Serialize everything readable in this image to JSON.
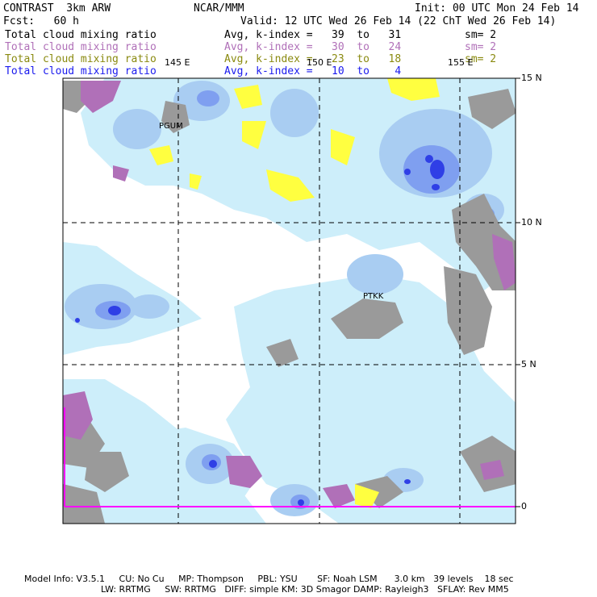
{
  "header": {
    "model": "CONTRAST  3km ARW",
    "center": "NCAR/MMM",
    "init": "Init: 00 UTC Mon 24 Feb 14",
    "fcst": "Fcst:   60 h",
    "valid": "Valid: 12 UTC Wed 26 Feb 14 (22 ChT Wed 26 Feb 14)"
  },
  "fields": [
    {
      "name": "Total cloud mixing ratio",
      "range": "Avg, k-index =   39  to   31",
      "sm": "sm= 2",
      "color": "#000000"
    },
    {
      "name": "Total cloud mixing ratio",
      "range": "Avg, k-index =   30  to   24",
      "sm": "sm= 2",
      "color": "#b070b8"
    },
    {
      "name": "Total cloud mixing ratio",
      "range": "Avg, k-index =   23  to   18",
      "sm": "sm= 2",
      "color": "#8a8a10"
    },
    {
      "name": "Total cloud mixing ratio",
      "range": "Avg, k-index =   10  to    4",
      "sm": "",
      "color": "#1a1aee"
    }
  ],
  "map": {
    "lon_labels": [
      "145 E",
      "150 E",
      "155 E"
    ],
    "lat_labels": [
      "15 N",
      "10 N",
      "5 N",
      "0"
    ],
    "stations": [
      "PGUM",
      "PTKK"
    ],
    "colors": {
      "light_cloud": "#cdeefa",
      "medium_cloud": "#a9cdf2",
      "dense_cloud": "#7f9ff0",
      "core_cloud": "#2f3fe6",
      "purple_cloud": "#b070b8",
      "yellow_cloud": "#ffff40",
      "gray_cloud": "#9a9a9a",
      "boundary": "#ff00ff"
    }
  },
  "footer": {
    "line1": "Model Info: V3.5.1     CU: No Cu     MP: Thompson     PBL: YSU       SF: Noah LSM      3.0 km   39 levels    18 sec",
    "line2": "LW: RRTMG     SW: RRTMG   DIFF: simple KM: 3D Smagor DAMP: Rayleigh3   SFLAY: Rev MM5"
  }
}
